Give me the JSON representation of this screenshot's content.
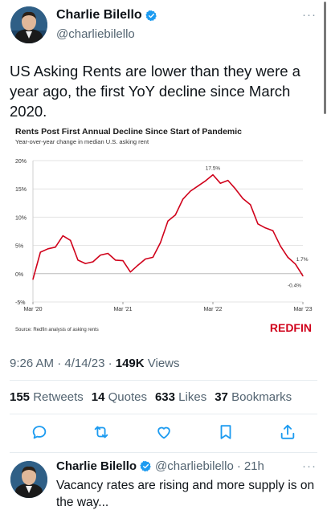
{
  "tweet": {
    "author_name": "Charlie Bilello",
    "author_handle": "@charliebilello",
    "text": "US Asking Rents are lower than they were a year ago, the first YoY decline since March 2020.",
    "time": "9:26 AM · 4/14/23 · ",
    "views_count": "149K",
    "views_label": " Views",
    "stats": {
      "retweets_count": "155",
      "retweets_label": "Retweets",
      "quotes_count": "14",
      "quotes_label": "Quotes",
      "likes_count": "633",
      "likes_label": "Likes",
      "bookmarks_count": "37",
      "bookmarks_label": "Bookmarks"
    }
  },
  "icons": {
    "verified": "verified-badge-icon",
    "more": "more-horizontal-icon",
    "reply": "speech-bubble-icon",
    "retweet": "retweet-icon",
    "like": "heart-icon",
    "bookmark": "bookmark-icon",
    "share": "share-icon"
  },
  "colors": {
    "accent": "#1d9bf0",
    "series": "#d0021b",
    "brand": "#d0021b"
  },
  "chart_data": {
    "type": "line",
    "title": "Rents Post First Annual Decline Since Start of Pandemic",
    "subtitle": "Year-over-year change in median U.S. asking rent",
    "x_tick_labels": [
      "Mar '20",
      "Mar '21",
      "Mar '22",
      "Mar '23"
    ],
    "y_tick_labels": [
      "20%",
      "15%",
      "10%",
      "5%",
      "0%",
      "-5%"
    ],
    "y_ticks": [
      20,
      15,
      10,
      5,
      0,
      -5
    ],
    "ylim": [
      -5,
      20
    ],
    "x_range": [
      "2020-03",
      "2023-03"
    ],
    "grid": true,
    "source": "Source: Redfin analysis of asking rents",
    "brand": "REDFIN",
    "annotations": [
      {
        "x": "2022-03",
        "y": 17.5,
        "text": "17.5%"
      },
      {
        "x": "2023-02",
        "y": 1.7,
        "text": "1.7%"
      },
      {
        "x": "2023-03",
        "y": -0.4,
        "text": "-0.4%"
      }
    ],
    "x": [
      "2020-03",
      "2020-04",
      "2020-05",
      "2020-06",
      "2020-07",
      "2020-08",
      "2020-09",
      "2020-10",
      "2020-11",
      "2020-12",
      "2021-01",
      "2021-02",
      "2021-03",
      "2021-04",
      "2021-05",
      "2021-06",
      "2021-07",
      "2021-08",
      "2021-09",
      "2021-10",
      "2021-11",
      "2021-12",
      "2022-01",
      "2022-02",
      "2022-03",
      "2022-04",
      "2022-05",
      "2022-06",
      "2022-07",
      "2022-08",
      "2022-09",
      "2022-10",
      "2022-11",
      "2022-12",
      "2023-01",
      "2023-02",
      "2023-03"
    ],
    "values": [
      -1.0,
      3.8,
      4.4,
      4.7,
      6.7,
      5.9,
      2.4,
      1.8,
      2.1,
      3.3,
      3.6,
      2.4,
      2.3,
      0.3,
      1.5,
      2.6,
      2.9,
      5.5,
      9.3,
      10.4,
      13.2,
      14.6,
      15.5,
      16.4,
      17.5,
      16.0,
      16.5,
      15.0,
      13.3,
      12.2,
      8.8,
      8.1,
      7.6,
      4.9,
      2.9,
      1.7,
      -0.4
    ]
  },
  "reply": {
    "author_name": "Charlie Bilello",
    "author_handle": "@charliebilello",
    "dot": "·",
    "age": "21h",
    "text": "Vacancy rates are rising and more supply is on the way..."
  }
}
